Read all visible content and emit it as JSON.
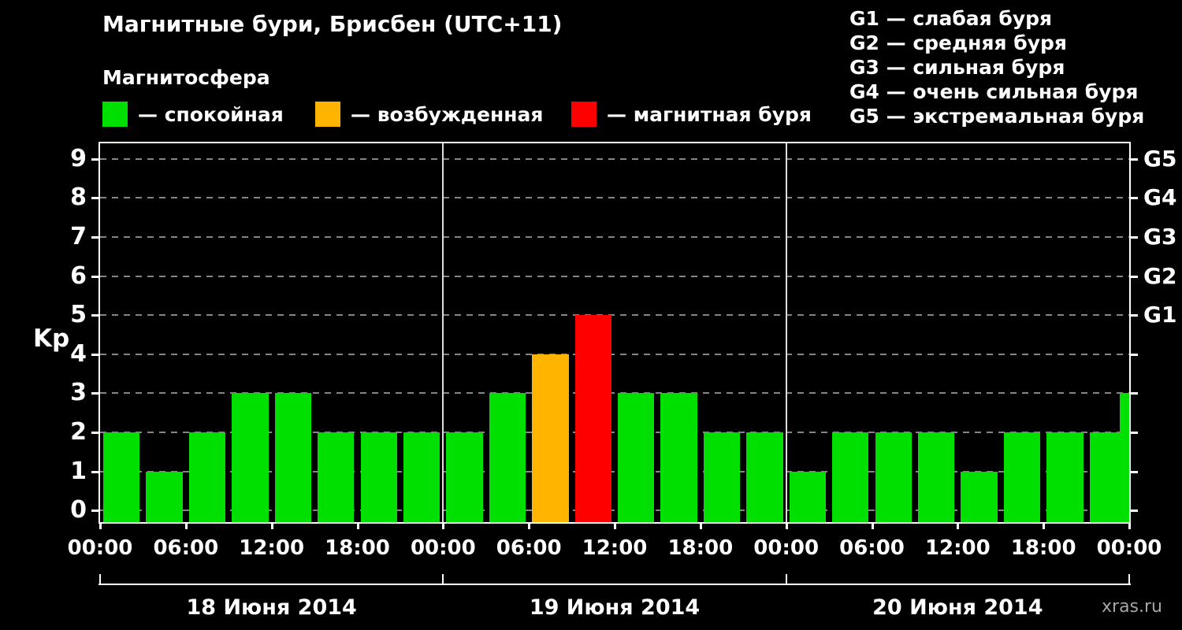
{
  "header": {
    "title": "Магнитные бури, Брисбен (UTC+11)",
    "subtitle": "Магнитосфера"
  },
  "legend": {
    "items": [
      {
        "key": "quiet",
        "color": "#00e000",
        "label": "— спокойная"
      },
      {
        "key": "excited",
        "color": "#ffb400",
        "label": "— возбужденная"
      },
      {
        "key": "storm",
        "color": "#ff0000",
        "label": "— магнитная буря"
      }
    ]
  },
  "g_legend": [
    "G1 — слабая буря",
    "G2 — средняя буря",
    "G3 — сильная буря",
    "G4 — очень сильная буря",
    "G5 — экстремальная буря"
  ],
  "watermark": "xras.ru",
  "chart_data": {
    "type": "bar",
    "title": "Магнитные бури, Брисбен (UTC+11)",
    "subtitle": "Магнитосфера",
    "ylabel": "Kp",
    "ylim": [
      -0.3,
      9.4
    ],
    "yticks": [
      0,
      1,
      2,
      3,
      4,
      5,
      6,
      7,
      8,
      9
    ],
    "x_hours_span": 72,
    "slot_hours": 3,
    "grid": "horizontal dashed",
    "colors": {
      "quiet": "#00e000",
      "excited": "#ffb400",
      "storm": "#ff0000"
    },
    "bars": [
      {
        "hour": 0,
        "kp": 2,
        "state": "quiet"
      },
      {
        "hour": 3,
        "kp": 1,
        "state": "quiet"
      },
      {
        "hour": 6,
        "kp": 2,
        "state": "quiet"
      },
      {
        "hour": 9,
        "kp": 3,
        "state": "quiet"
      },
      {
        "hour": 12,
        "kp": 3,
        "state": "quiet"
      },
      {
        "hour": 15,
        "kp": 2,
        "state": "quiet"
      },
      {
        "hour": 18,
        "kp": 2,
        "state": "quiet"
      },
      {
        "hour": 21,
        "kp": 2,
        "state": "quiet"
      },
      {
        "hour": 24,
        "kp": 2,
        "state": "quiet"
      },
      {
        "hour": 27,
        "kp": 3,
        "state": "quiet"
      },
      {
        "hour": 30,
        "kp": 4,
        "state": "excited"
      },
      {
        "hour": 33,
        "kp": 5,
        "state": "storm"
      },
      {
        "hour": 36,
        "kp": 3,
        "state": "quiet"
      },
      {
        "hour": 39,
        "kp": 3,
        "state": "quiet"
      },
      {
        "hour": 42,
        "kp": 2,
        "state": "quiet"
      },
      {
        "hour": 45,
        "kp": 2,
        "state": "quiet"
      },
      {
        "hour": 48,
        "kp": 1,
        "state": "quiet"
      },
      {
        "hour": 51,
        "kp": 2,
        "state": "quiet"
      },
      {
        "hour": 54,
        "kp": 2,
        "state": "quiet"
      },
      {
        "hour": 57,
        "kp": 2,
        "state": "quiet"
      },
      {
        "hour": 60,
        "kp": 1,
        "state": "quiet"
      },
      {
        "hour": 63,
        "kp": 2,
        "state": "quiet"
      },
      {
        "hour": 66,
        "kp": 2,
        "state": "quiet"
      },
      {
        "hour": 69,
        "kp": 2,
        "state": "quiet"
      },
      {
        "hour": 72,
        "kp": 3,
        "state": "quiet",
        "partial": true
      }
    ],
    "time_ticks": [
      {
        "hour": 0,
        "label": "00:00"
      },
      {
        "hour": 6,
        "label": "06:00"
      },
      {
        "hour": 12,
        "label": "12:00"
      },
      {
        "hour": 18,
        "label": "18:00"
      },
      {
        "hour": 24,
        "label": "00:00"
      },
      {
        "hour": 30,
        "label": "06:00"
      },
      {
        "hour": 36,
        "label": "12:00"
      },
      {
        "hour": 42,
        "label": "18:00"
      },
      {
        "hour": 48,
        "label": "00:00"
      },
      {
        "hour": 54,
        "label": "06:00"
      },
      {
        "hour": 60,
        "label": "12:00"
      },
      {
        "hour": 66,
        "label": "18:00"
      },
      {
        "hour": 72,
        "label": "00:00"
      }
    ],
    "right_axis_labels": [
      {
        "kp": 5,
        "label": "G1"
      },
      {
        "kp": 6,
        "label": "G2"
      },
      {
        "kp": 7,
        "label": "G3"
      },
      {
        "kp": 8,
        "label": "G4"
      },
      {
        "kp": 9,
        "label": "G5"
      }
    ],
    "day_separators_hours": [
      24,
      48
    ],
    "days": [
      {
        "label": "18 Июня 2014",
        "start_hour": 0,
        "end_hour": 24
      },
      {
        "label": "19 Июня 2014",
        "start_hour": 24,
        "end_hour": 48
      },
      {
        "label": "20 Июня 2014",
        "start_hour": 48,
        "end_hour": 72
      }
    ]
  }
}
